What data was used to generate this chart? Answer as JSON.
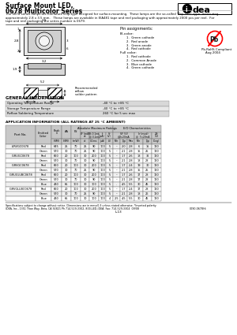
{
  "title_line1": "Surface Mount LED,",
  "title_line2": "0678 Multicolor Series",
  "desc_lines": [
    "The 0678 series lamps are miniature chip-type designed for surface-mounting.  These lamps are the so-called \"Top LED\" type, measuring",
    "approximately 2.8 x 3.5 mm.   These lamps are available in EIA481 tape and reel packaging with approximately 2000 pcs per reel.  For",
    "tape and reel packaging the series number is 0679."
  ],
  "pin_title": "Pin assignments:",
  "bi_label": "Bi-color:",
  "bi_pins": [
    "1.  Green cathode",
    "2.  Red anode",
    "3.  Green anode",
    "4.  Red cathode"
  ],
  "full_label": "Full color:",
  "full_pins": [
    "1.  Red cathode",
    "2.  Common Anode",
    "3.  Blue cathode",
    "4.  Green cathode"
  ],
  "rohs_text1": "Pb-RoHS Compliant",
  "rohs_text2": "Aug 2004",
  "gen_title": "GENERAL INFORMATION",
  "gen_rows": [
    [
      "Operating Temperature Range",
      "-40 °C to +85 °C"
    ],
    [
      "Storage Temperature Range",
      "-40 °C to +85 °C"
    ],
    [
      "Reflow Soldering Temperature",
      "260 °C for 5 sec max"
    ]
  ],
  "app_title": "APPLICATION INFORMATION (ALL RATINGS AT 25 °C AMBIENT)",
  "tbl_data": [
    [
      "IVRVGC0678",
      "Red",
      "645",
      "25",
      "70",
      "25",
      "90",
      "100",
      "5",
      "–",
      "2.0",
      "2.8",
      "6",
      "15",
      "120"
    ],
    [
      "",
      "Green",
      "570",
      "30",
      "70",
      "25",
      "90",
      "100",
      "5",
      "–",
      "2.1",
      "2.8",
      "15",
      "25",
      "120"
    ],
    [
      "IGRUGC0678",
      "Red",
      "660",
      "20",
      "100",
      "30",
      "200",
      "100",
      "5",
      "–",
      "1.7",
      "2.6",
      "18",
      "32",
      "120"
    ],
    [
      "",
      "Green",
      "570",
      "30",
      "70",
      "30",
      "90",
      "100",
      "5",
      "–",
      "2.1",
      "2.8",
      "18",
      "28",
      "120"
    ],
    [
      "IGRVGC0678",
      "Red",
      "660",
      "20",
      "100",
      "30",
      "200",
      "100",
      "5",
      "–",
      "1.7",
      "2.4",
      "19",
      "30",
      "120"
    ],
    [
      "",
      "Green",
      "570",
      "30",
      "70",
      "25",
      "90",
      "100",
      "5",
      "–",
      "2.1",
      "2.8",
      "15",
      "25",
      "120"
    ],
    [
      "IGRUGLUBC0678",
      "Red",
      "660",
      "20",
      "100",
      "30",
      "200",
      "100",
      "5",
      "–",
      "1.7",
      "2.6",
      "17",
      "28",
      "120"
    ],
    [
      "",
      "Green",
      "570",
      "30",
      "70",
      "30",
      "90",
      "100",
      "5",
      "–",
      "2.1",
      "2.8",
      "17",
      "28",
      "120"
    ],
    [
      "",
      "Blue",
      "430",
      "65",
      "100",
      "30",
      "100",
      "100",
      "5",
      ".",
      "4.5",
      "5.5",
      "30",
      "45",
      "120"
    ],
    [
      "IGRVGLUBC0678",
      "Red",
      "660",
      "20",
      "100",
      "30",
      "200",
      "100",
      "5",
      "–",
      "1.7",
      "2.4",
      "17",
      "28",
      "120"
    ],
    [
      "",
      "Green",
      "570",
      "30",
      "70",
      "25",
      "90",
      "100",
      "5",
      "–",
      "2.1",
      "2.8",
      "18",
      "26",
      "120"
    ],
    [
      "",
      "Blue",
      "430",
      "65",
      "100",
      "30",
      "100",
      "100",
      "4",
      "2.5",
      "4.5",
      "5.5",
      "30",
      "45",
      "120"
    ]
  ],
  "footer1": "Specifications subject to change without notice. Dimensions are in mm±0.3 unless stated otherwise. *Inverted polarity",
  "footer2": "IDEA, Inc., 1351 Titan Way, Brea, CA 92821 Ph 714-529-3302, 800-LED-IDEA; Fax: 714-529-3304  09/08",
  "footer_code": "0090-0678Hi",
  "page_num": "L-13",
  "bg": "#ffffff",
  "hdr_bg": "#c8c8c8",
  "row_bg1": "#f0f0f0",
  "row_bg2": "#ffffff",
  "gen_bg1": "#d8d8d8",
  "gen_bg2": "#e8e8e8"
}
